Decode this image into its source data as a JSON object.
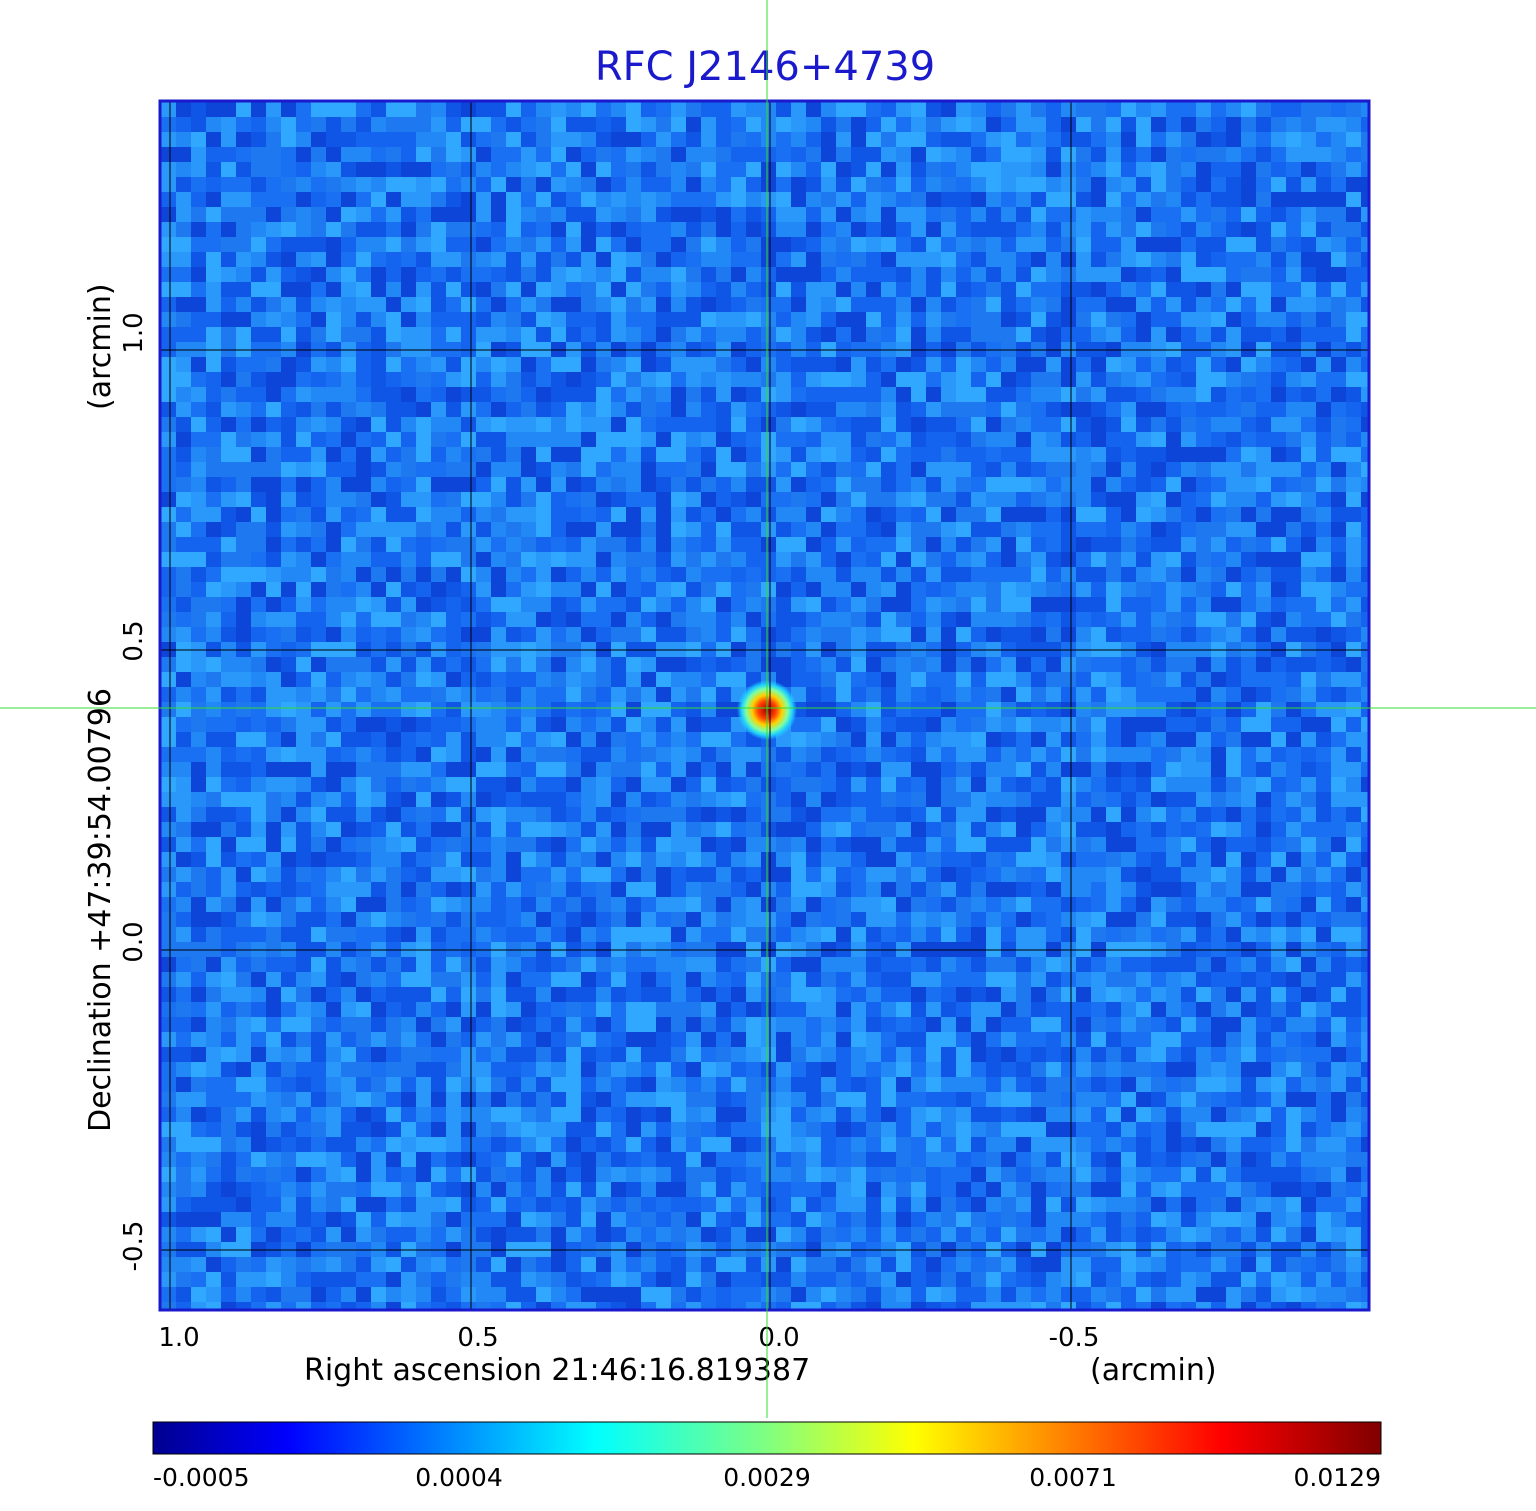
{
  "title": "RFC J2146+4739",
  "colors": {
    "title": "#1a1acc",
    "frame": "#1a1acc",
    "grid": "#000000",
    "crosshair": "#33dd33",
    "background_map": "#1e78f0"
  },
  "x_axis": {
    "label": "Right ascension  21:46:16.819387",
    "unit": "(arcmin)",
    "ticks": [
      "1.0",
      "0.5",
      "0.0",
      "-0.5"
    ],
    "range": [
      1.0,
      -1.0
    ]
  },
  "y_axis": {
    "label": "Declination  +47:39:54.00796",
    "unit": "(arcmin)",
    "ticks": [
      "1.0",
      "0.5",
      "0.0",
      "-0.5"
    ],
    "range": [
      -0.6,
      1.4
    ]
  },
  "colorbar": {
    "colormap": "jet",
    "ticks": [
      "-0.0005",
      "0.0004",
      "0.0029",
      "0.0071",
      "0.0129"
    ]
  },
  "source": {
    "ra_offset_arcmin": 0.0,
    "dec_offset_arcmin": 0.4
  },
  "crosshair_visible": true,
  "grid": true
}
